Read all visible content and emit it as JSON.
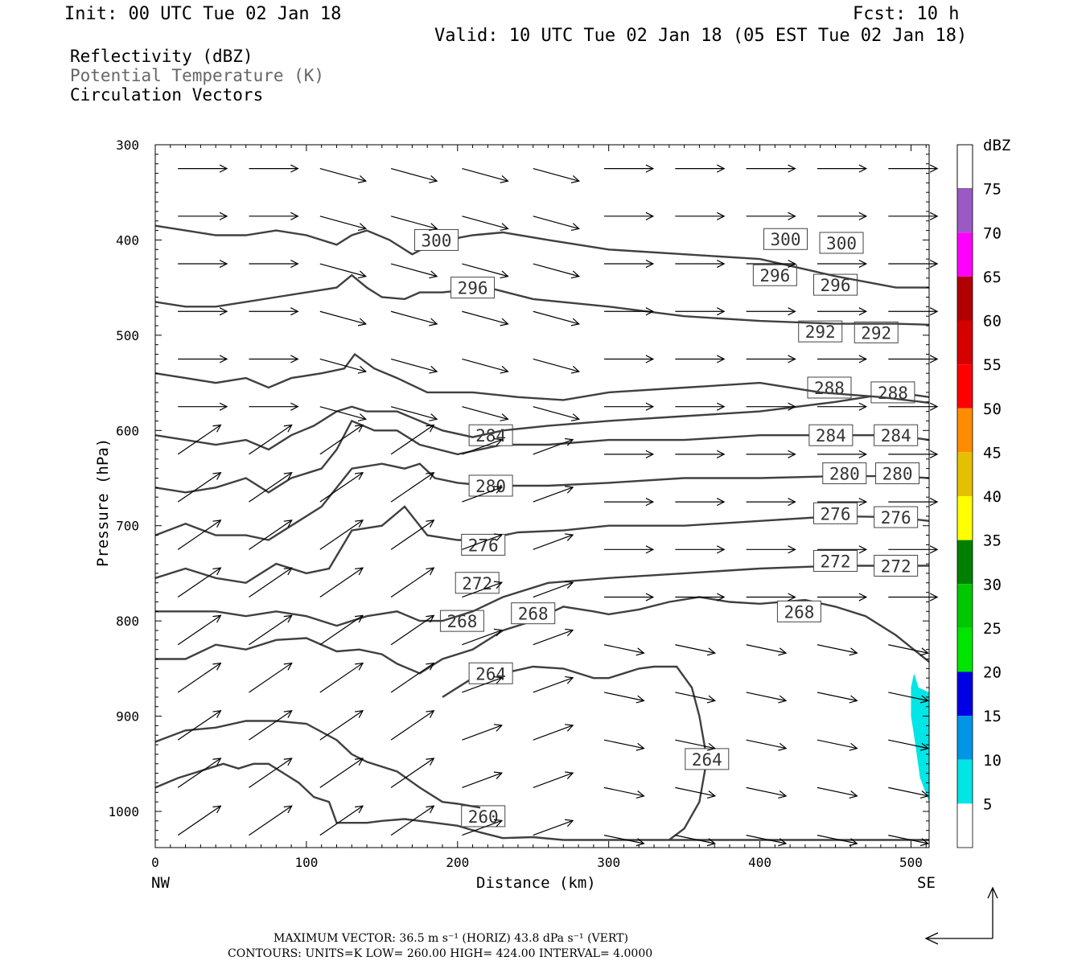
{
  "header": {
    "init": "Init: 00 UTC Tue 02 Jan 18",
    "fcst": "Fcst:   10 h",
    "valid": "Valid: 10 UTC Tue 02 Jan 18 (05 EST Tue 02 Jan 18)"
  },
  "legend": {
    "line1": "Reflectivity (dBZ)",
    "line2": "Potential Temperature (K)",
    "line3": "Circulation Vectors"
  },
  "colors": {
    "text": "#000000",
    "theta_contour": "#404040",
    "theta_legend_text": "#666666",
    "refl_5": "#00e5e5"
  },
  "footer": {
    "line1": "MAXIMUM VECTOR:  36.5 m s⁻¹ (HORIZ)        43.8 dPa s⁻¹ (VERT)",
    "line2": "CONTOURS:  UNITS=K  LOW=   260.00        HIGH=   424.00        INTERVAL=    4.0000"
  },
  "chart_data": {
    "type": "contour",
    "xlabel": "Distance (km)",
    "ylabel": "Pressure (hPa)",
    "x_left_label": "NW",
    "x_right_label": "SE",
    "xlim": [
      0,
      512
    ],
    "ylim": [
      300,
      1038
    ],
    "x_ticks": [
      0,
      100,
      200,
      300,
      400,
      500
    ],
    "y_ticks": [
      300,
      400,
      500,
      600,
      700,
      800,
      900,
      1000
    ],
    "colorbar": {
      "title": "dBZ",
      "levels": [
        5,
        10,
        15,
        20,
        25,
        30,
        35,
        40,
        45,
        50,
        55,
        60,
        65,
        70,
        75
      ],
      "colors": [
        "#00e5e5",
        "#0095e5",
        "#0000e5",
        "#00e500",
        "#00c800",
        "#008000",
        "#ffff00",
        "#e5c000",
        "#ff8c00",
        "#ff0000",
        "#d50000",
        "#b00000",
        "#ff00ff",
        "#9b59c6",
        "#ffffff"
      ]
    },
    "theta_contours": [
      {
        "value": 260,
        "labels": [
          [
            217,
            1005
          ]
        ],
        "points": [
          [
            0,
            975
          ],
          [
            15,
            965
          ],
          [
            25,
            960
          ],
          [
            35,
            955
          ],
          [
            45,
            950
          ],
          [
            55,
            955
          ],
          [
            65,
            950
          ],
          [
            75,
            950
          ],
          [
            85,
            960
          ],
          [
            95,
            970
          ],
          [
            105,
            985
          ],
          [
            115,
            990
          ],
          [
            120,
            1012
          ],
          [
            130,
            1012
          ],
          [
            140,
            1012
          ],
          [
            150,
            1010
          ],
          [
            165,
            1008
          ],
          [
            185,
            1012
          ],
          [
            200,
            1015
          ],
          [
            215,
            1022
          ],
          [
            230,
            1028
          ],
          [
            250,
            1027
          ],
          [
            270,
            1030
          ],
          [
            300,
            1030
          ],
          [
            350,
            1030
          ],
          [
            400,
            1030
          ],
          [
            450,
            1030
          ],
          [
            500,
            1030
          ],
          [
            512,
            1030
          ]
        ]
      },
      {
        "value": 264,
        "labels": [
          [
            222,
            855
          ],
          [
            365,
            945
          ]
        ],
        "points": [
          [
            0,
            927
          ],
          [
            20,
            915
          ],
          [
            40,
            912
          ],
          [
            60,
            905
          ],
          [
            80,
            905
          ],
          [
            100,
            908
          ],
          [
            120,
            925
          ],
          [
            130,
            940
          ],
          [
            140,
            948
          ],
          [
            160,
            958
          ],
          [
            175,
            975
          ],
          [
            190,
            990
          ],
          [
            200,
            992
          ],
          [
            215,
            996
          ]
        ],
        "points2": [
          [
            190,
            880
          ],
          [
            210,
            860
          ],
          [
            230,
            855
          ],
          [
            250,
            848
          ],
          [
            270,
            850
          ],
          [
            290,
            860
          ],
          [
            300,
            860
          ],
          [
            310,
            855
          ],
          [
            320,
            850
          ],
          [
            330,
            848
          ],
          [
            345,
            848
          ],
          [
            355,
            870
          ],
          [
            360,
            900
          ],
          [
            365,
            945
          ],
          [
            360,
            990
          ],
          [
            350,
            1018
          ],
          [
            340,
            1030
          ]
        ]
      },
      {
        "value": 268,
        "labels": [
          [
            203,
            800
          ],
          [
            250,
            792
          ],
          [
            426,
            790
          ]
        ],
        "points": [
          [
            0,
            840
          ],
          [
            20,
            840
          ],
          [
            40,
            825
          ],
          [
            60,
            830
          ],
          [
            80,
            820
          ],
          [
            100,
            818
          ],
          [
            120,
            832
          ],
          [
            135,
            830
          ],
          [
            150,
            835
          ],
          [
            160,
            845
          ],
          [
            175,
            855
          ],
          [
            190,
            840
          ],
          [
            210,
            830
          ],
          [
            230,
            810
          ],
          [
            250,
            800
          ],
          [
            270,
            785
          ],
          [
            290,
            790
          ],
          [
            300,
            793
          ],
          [
            320,
            788
          ],
          [
            340,
            780
          ],
          [
            360,
            775
          ],
          [
            380,
            780
          ],
          [
            400,
            782
          ],
          [
            430,
            778
          ],
          [
            450,
            785
          ],
          [
            470,
            795
          ],
          [
            490,
            815
          ],
          [
            512,
            843
          ]
        ]
      },
      {
        "value": 272,
        "labels": [
          [
            213,
            760
          ],
          [
            450,
            737
          ],
          [
            490,
            742
          ]
        ],
        "points": [
          [
            0,
            790
          ],
          [
            20,
            790
          ],
          [
            40,
            790
          ],
          [
            60,
            795
          ],
          [
            80,
            790
          ],
          [
            100,
            795
          ],
          [
            120,
            805
          ],
          [
            140,
            795
          ],
          [
            160,
            790
          ],
          [
            175,
            800
          ],
          [
            190,
            800
          ],
          [
            210,
            790
          ],
          [
            230,
            775
          ],
          [
            260,
            760
          ],
          [
            300,
            755
          ],
          [
            350,
            750
          ],
          [
            400,
            745
          ],
          [
            450,
            742
          ],
          [
            490,
            742
          ],
          [
            512,
            742
          ]
        ]
      },
      {
        "value": 276,
        "labels": [
          [
            217,
            720
          ],
          [
            450,
            687
          ],
          [
            490,
            691
          ]
        ],
        "points": [
          [
            0,
            755
          ],
          [
            20,
            745
          ],
          [
            40,
            755
          ],
          [
            60,
            760
          ],
          [
            80,
            740
          ],
          [
            100,
            750
          ],
          [
            115,
            745
          ],
          [
            130,
            705
          ],
          [
            150,
            700
          ],
          [
            165,
            680
          ],
          [
            180,
            710
          ],
          [
            200,
            715
          ],
          [
            215,
            715
          ],
          [
            240,
            707
          ],
          [
            270,
            705
          ],
          [
            300,
            700
          ],
          [
            350,
            700
          ],
          [
            400,
            695
          ],
          [
            450,
            690
          ],
          [
            490,
            691
          ],
          [
            512,
            695
          ]
        ]
      },
      {
        "value": 280,
        "labels": [
          [
            222,
            658
          ],
          [
            456,
            645
          ],
          [
            491,
            645
          ]
        ],
        "points": [
          [
            0,
            710
          ],
          [
            20,
            698
          ],
          [
            40,
            710
          ],
          [
            60,
            710
          ],
          [
            75,
            715
          ],
          [
            90,
            700
          ],
          [
            110,
            680
          ],
          [
            130,
            640
          ],
          [
            150,
            635
          ],
          [
            165,
            640
          ],
          [
            175,
            635
          ],
          [
            185,
            650
          ],
          [
            200,
            655
          ],
          [
            220,
            658
          ],
          [
            260,
            658
          ],
          [
            300,
            655
          ],
          [
            350,
            650
          ],
          [
            400,
            650
          ],
          [
            450,
            648
          ],
          [
            490,
            648
          ],
          [
            512,
            650
          ]
        ]
      },
      {
        "value": 284,
        "labels": [
          [
            222,
            605
          ],
          [
            447,
            605
          ],
          [
            490,
            605
          ]
        ],
        "points": [
          [
            0,
            660
          ],
          [
            20,
            665
          ],
          [
            40,
            660
          ],
          [
            60,
            650
          ],
          [
            75,
            665
          ],
          [
            90,
            650
          ],
          [
            110,
            640
          ],
          [
            120,
            620
          ],
          [
            130,
            590
          ],
          [
            145,
            600
          ],
          [
            160,
            600
          ],
          [
            175,
            615
          ],
          [
            200,
            625
          ],
          [
            230,
            615
          ],
          [
            260,
            615
          ],
          [
            300,
            610
          ],
          [
            350,
            610
          ],
          [
            400,
            605
          ],
          [
            450,
            605
          ],
          [
            490,
            605
          ],
          [
            512,
            610
          ]
        ]
      },
      {
        "value": 288,
        "labels": [
          [
            446,
            555
          ],
          [
            488,
            560
          ]
        ],
        "points": [
          [
            0,
            605
          ],
          [
            20,
            610
          ],
          [
            40,
            615
          ],
          [
            60,
            610
          ],
          [
            75,
            620
          ],
          [
            90,
            605
          ],
          [
            105,
            595
          ],
          [
            120,
            580
          ],
          [
            130,
            575
          ],
          [
            140,
            580
          ],
          [
            160,
            580
          ],
          [
            175,
            590
          ],
          [
            190,
            600
          ],
          [
            210,
            607
          ],
          [
            230,
            600
          ],
          [
            260,
            595
          ],
          [
            300,
            590
          ],
          [
            350,
            585
          ],
          [
            400,
            580
          ],
          [
            450,
            570
          ],
          [
            490,
            560
          ],
          [
            512,
            565
          ]
        ]
      },
      {
        "value": 292,
        "labels": [
          [
            440,
            496
          ],
          [
            477,
            497
          ]
        ],
        "points": [
          [
            0,
            540
          ],
          [
            20,
            545
          ],
          [
            40,
            550
          ],
          [
            60,
            545
          ],
          [
            75,
            555
          ],
          [
            90,
            545
          ],
          [
            110,
            540
          ],
          [
            125,
            535
          ],
          [
            132,
            520
          ],
          [
            145,
            535
          ],
          [
            160,
            545
          ],
          [
            180,
            560
          ],
          [
            210,
            560
          ],
          [
            240,
            565
          ],
          [
            270,
            568
          ],
          [
            300,
            560
          ],
          [
            350,
            555
          ],
          [
            400,
            550
          ],
          [
            440,
            560
          ],
          [
            480,
            565
          ],
          [
            512,
            571
          ]
        ]
      },
      {
        "value": 296,
        "labels": [
          [
            210,
            450
          ],
          [
            410,
            437
          ],
          [
            450,
            447
          ]
        ],
        "points": [
          [
            0,
            465
          ],
          [
            20,
            470
          ],
          [
            40,
            470
          ],
          [
            60,
            465
          ],
          [
            80,
            460
          ],
          [
            100,
            455
          ],
          [
            120,
            450
          ],
          [
            130,
            437
          ],
          [
            140,
            450
          ],
          [
            150,
            460
          ],
          [
            165,
            462
          ],
          [
            175,
            455
          ],
          [
            190,
            455
          ],
          [
            220,
            450
          ],
          [
            250,
            462
          ],
          [
            300,
            470
          ],
          [
            350,
            480
          ],
          [
            400,
            485
          ],
          [
            450,
            488
          ],
          [
            490,
            488
          ],
          [
            512,
            489
          ]
        ]
      },
      {
        "value": 300,
        "labels": [
          [
            186,
            400
          ],
          [
            417,
            399
          ],
          [
            454,
            403
          ]
        ],
        "points": [
          [
            0,
            385
          ],
          [
            20,
            390
          ],
          [
            40,
            395
          ],
          [
            60,
            395
          ],
          [
            80,
            390
          ],
          [
            100,
            395
          ],
          [
            120,
            405
          ],
          [
            130,
            395
          ],
          [
            140,
            390
          ],
          [
            155,
            400
          ],
          [
            170,
            415
          ],
          [
            186,
            402
          ],
          [
            210,
            395
          ],
          [
            230,
            392
          ],
          [
            260,
            400
          ],
          [
            300,
            410
          ],
          [
            350,
            415
          ],
          [
            400,
            420
          ],
          [
            450,
            438
          ],
          [
            490,
            450
          ],
          [
            512,
            450
          ]
        ]
      }
    ],
    "reflectivity_regions": [
      {
        "dbz": 5,
        "points": [
          [
            500,
            870
          ],
          [
            502,
            855
          ],
          [
            505,
            870
          ],
          [
            512,
            875
          ],
          [
            512,
            990
          ],
          [
            506,
            965
          ],
          [
            502,
            920
          ],
          [
            500,
            900
          ]
        ]
      }
    ]
  }
}
